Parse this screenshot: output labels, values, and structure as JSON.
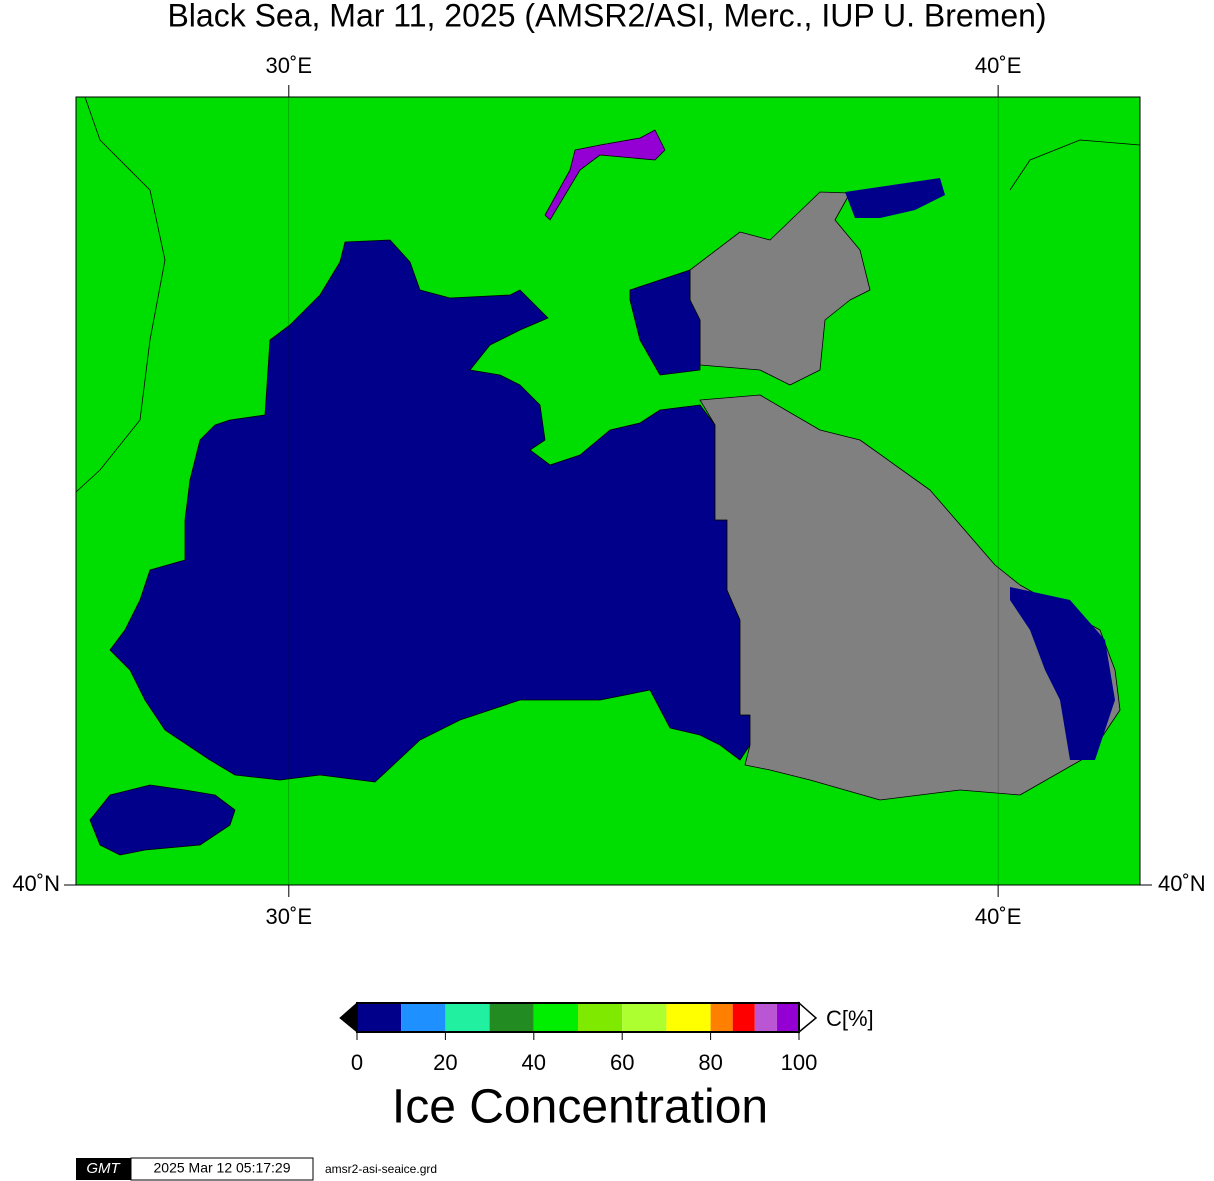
{
  "header": {
    "title": "Black Sea, Mar 11, 2025 (AMSR2/ASI, Merc., IUP U. Bremen)"
  },
  "map": {
    "projection": "mercator",
    "xlim": [
      27,
      42
    ],
    "ylim": [
      40,
      48
    ],
    "xticks": [
      {
        "value": 30,
        "label": "30˚E"
      },
      {
        "value": 40,
        "label": "40˚E"
      }
    ],
    "yticks": [
      {
        "value": 40,
        "label": "40˚N"
      }
    ],
    "land_color": "#00dd00",
    "no_data_color": "#808080"
  },
  "colorbar": {
    "unit": "C[%]",
    "title": "Ice Concentration",
    "boundaries": [
      0,
      10,
      20,
      30,
      40,
      50,
      60,
      70,
      80,
      85,
      90,
      95,
      100
    ],
    "colors": [
      "#00008b",
      "#1e90ff",
      "#20f0a0",
      "#228b22",
      "#00ee00",
      "#7fea00",
      "#adff2f",
      "#ffff00",
      "#ff7f00",
      "#ff0000",
      "#ba55d3",
      "#9400d3"
    ],
    "ticks": [
      0,
      20,
      40,
      60,
      80,
      100
    ]
  },
  "footer": {
    "logo": "GMT",
    "timestamp": "2025 Mar 12 05:17:29",
    "file": "amsr2-asi-seaice.grd"
  }
}
